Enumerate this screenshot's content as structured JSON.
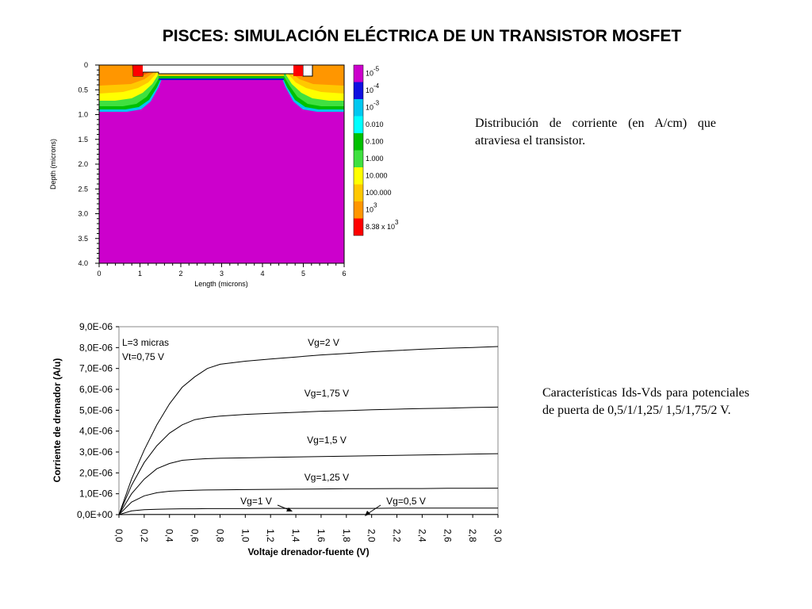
{
  "slide": {
    "title": "PISCES: SIMULACIÓN ELÉCTRICA DE UN TRANSISTOR MOSFET",
    "caption_current": "Distribución de corriente (en A/cm) que atraviesa el transistor.",
    "caption_iv": "Características Ids-Vds para potenciales de puerta de 0,5/1/1,25/ 1,5/1,75/2 V."
  },
  "colors": {
    "magenta": "#cc00cc",
    "blue": "#1010e0",
    "cyan": "#00c8f0",
    "lightcyan": "#00ffff",
    "green": "#00c000",
    "lightgreen": "#40e040",
    "yellow": "#ffff00",
    "gold": "#ffc800",
    "orange": "#ff9600",
    "orangered": "#ff5a00",
    "red": "#ff0000"
  },
  "chart_data": [
    {
      "type": "heatmap",
      "xlabel": "Length (microns)",
      "ylabel": "Depth (microns)",
      "xlim": [
        0,
        6
      ],
      "ylim": [
        0,
        4.0
      ],
      "x_ticks": [
        "0",
        "1",
        "2",
        "3",
        "4",
        "5",
        "6"
      ],
      "y_ticks": [
        "0",
        "0.5",
        "1.0",
        "1.5",
        "2.0",
        "2.5",
        "3.0",
        "3.5",
        "4.0"
      ],
      "colorbar": [
        {
          "label_base": "10",
          "label_exp": "-5",
          "color": "#cc00cc"
        },
        {
          "label_base": "10",
          "label_exp": "-4",
          "color": "#1010e0"
        },
        {
          "label_base": "10",
          "label_exp": "-3",
          "color": "#00c8f0"
        },
        {
          "label_base": "0.010",
          "label_exp": "",
          "color": "#00ffff"
        },
        {
          "label_base": "0.100",
          "label_exp": "",
          "color": "#00c000"
        },
        {
          "label_base": "1.000",
          "label_exp": "",
          "color": "#40e040"
        },
        {
          "label_base": "10.000",
          "label_exp": "",
          "color": "#ffff00"
        },
        {
          "label_base": "100.000",
          "label_exp": "",
          "color": "#ffc800"
        },
        {
          "label_base": "10",
          "label_exp": "3",
          "color": "#ff9600"
        },
        {
          "label_base": "8.38 x 10",
          "label_exp": "3",
          "color": "#ff0000"
        }
      ]
    },
    {
      "type": "line",
      "xlabel": "Voltaje drenador-fuente (V)",
      "ylabel": "Corriente de drenador (A/u)",
      "xlim": [
        0,
        3.0
      ],
      "ylim": [
        0,
        9e-06
      ],
      "x_ticks": [
        "0,0",
        "0,2",
        "0,4",
        "0,6",
        "0,8",
        "1,0",
        "1,2",
        "1,4",
        "1,6",
        "1,8",
        "2,0",
        "2,2",
        "2,4",
        "2,6",
        "2,8",
        "3,0"
      ],
      "y_ticks": [
        "0,0E+00",
        "1,0E-06",
        "2,0E-06",
        "3,0E-06",
        "4,0E-06",
        "5,0E-06",
        "6,0E-06",
        "7,0E-06",
        "8,0E-06",
        "9,0E-06"
      ],
      "annotations": [
        "L=3 micras",
        "Vt=0,75 V"
      ],
      "x": [
        0,
        0.1,
        0.2,
        0.3,
        0.4,
        0.5,
        0.6,
        0.7,
        0.8,
        1.0,
        1.2,
        1.4,
        1.6,
        1.8,
        2.0,
        2.2,
        2.4,
        2.6,
        2.8,
        3.0
      ],
      "series": [
        {
          "name": "Vg=2 V",
          "values": [
            0,
            1.7e-06,
            3.1e-06,
            4.3e-06,
            5.3e-06,
            6.1e-06,
            6.6e-06,
            7e-06,
            7.2e-06,
            7.35e-06,
            7.45e-06,
            7.55e-06,
            7.65e-06,
            7.72e-06,
            7.8e-06,
            7.86e-06,
            7.92e-06,
            7.97e-06,
            8e-06,
            8.05e-06
          ]
        },
        {
          "name": "Vg=1,75 V",
          "values": [
            0,
            1.4e-06,
            2.5e-06,
            3.3e-06,
            3.9e-06,
            4.3e-06,
            4.55e-06,
            4.65e-06,
            4.72e-06,
            4.8e-06,
            4.85e-06,
            4.9e-06,
            4.95e-06,
            4.98e-06,
            5.02e-06,
            5.05e-06,
            5.08e-06,
            5.1e-06,
            5.13e-06,
            5.15e-06
          ]
        },
        {
          "name": "Vg=1,5 V",
          "values": [
            0,
            1e-06,
            1.7e-06,
            2.2e-06,
            2.45e-06,
            2.6e-06,
            2.65e-06,
            2.68e-06,
            2.7e-06,
            2.72e-06,
            2.74e-06,
            2.76e-06,
            2.78e-06,
            2.8e-06,
            2.82e-06,
            2.84e-06,
            2.86e-06,
            2.88e-06,
            2.9e-06,
            2.92e-06
          ]
        },
        {
          "name": "Vg=1,25 V",
          "values": [
            0,
            6e-07,
            9e-07,
            1.05e-06,
            1.12e-06,
            1.15e-06,
            1.17e-06,
            1.18e-06,
            1.19e-06,
            1.2e-06,
            1.21e-06,
            1.22e-06,
            1.23e-06,
            1.24e-06,
            1.24e-06,
            1.25e-06,
            1.25e-06,
            1.26e-06,
            1.26e-06,
            1.27e-06
          ]
        },
        {
          "name": "Vg=1 V",
          "values": [
            0,
            1.8e-07,
            2.4e-07,
            2.6e-07,
            2.7e-07,
            2.8e-07,
            2.8e-07,
            2.9e-07,
            2.9e-07,
            2.9e-07,
            3e-07,
            3e-07,
            3e-07,
            3e-07,
            3e-07,
            3.1e-07,
            3.1e-07,
            3.1e-07,
            3.1e-07,
            3.1e-07
          ]
        },
        {
          "name": "Vg=0,5 V",
          "values": [
            0,
            1e-08,
            1e-08,
            1e-08,
            1e-08,
            1e-08,
            1e-08,
            1e-08,
            1e-08,
            1e-08,
            1e-08,
            1e-08,
            1e-08,
            1e-08,
            1e-08,
            1e-08,
            1e-08,
            1e-08,
            1e-08,
            1e-08
          ]
        }
      ]
    }
  ]
}
